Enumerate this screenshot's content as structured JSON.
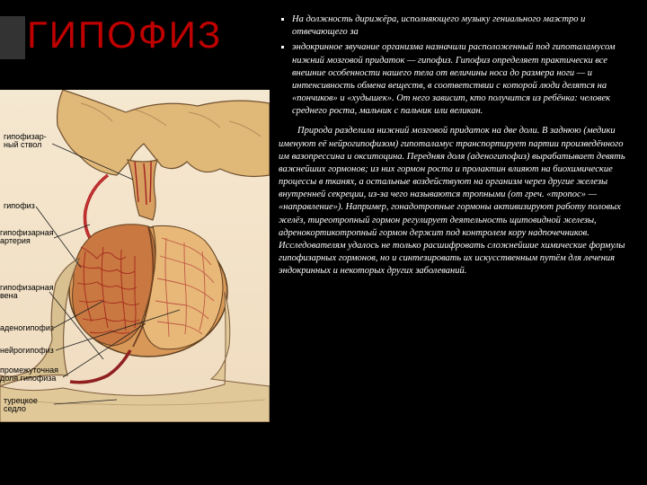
{
  "title": "ГИПОФИЗ",
  "diagram": {
    "labels": {
      "stalk": "гипофизар-\nный ствол",
      "pituitary": "гипофиз",
      "artery": "гипофизарная\nартерия",
      "vein": "гипофизарная\nвена",
      "adeno": "аденогипофиз",
      "neuro": "нейрогипофиз",
      "intermediate": "промежуточная\nдоля гипофиза",
      "saddle": "турецкое\nседло"
    },
    "colors": {
      "background": "#f5e8d0",
      "tissue_light": "#e8c890",
      "tissue_dark": "#c89050",
      "vessel_red": "#b02020",
      "vessel_dark": "#801010",
      "bone": "#d8b880",
      "outline": "#604020",
      "label_text": "#000000",
      "label_line": "#303030"
    }
  },
  "text": {
    "bullet1": "На должность дирижёра, исполняющего музыку гениального маэстро и отвечающего за",
    "bullet2": "эндокринное звучание организма назначили расположенный под гипоталамусом нижний мозговой придаток — гипофиз. Гипофиз определяет практически все внешние особенности нашего тела от величины носа до размера ноги — и интенсивность обмена веществ, в соответствии с которой люди делятся на «пончиков» и «худышек». От него зависит, кто получится из ребёнка: человек среднего роста, мальчик с пальчик или великан.",
    "para1": "Природа разделила нижний мозговой придаток на две доли. В заднюю (медики именуют её нейрогипофизом) гипоталамус транспортирует партии произведённого им вазопрессина и окситоцина. Передняя доля (аденогипофиз) вырабатывает девять важнейших гормонов; из них гормон роста и пролактин влияют на биохимические процессы в тканях, а остальные воздействуют на организм через другие железы внутренней секреции, из-за чего называются тропными (от греч. «тропос» — «направление»). Например, гонадотропные гормоны активизируют работу половых желёз, тиреотропный гормон регулирует деятельность щитовидной железы, адренокортикотропный гормон держит под контролем кору надпочечников. Исследователям удалось не только расшифровать сложнейшие химические формулы гипофизарных гормонов, но и синтезировать их искусственным путём для лечения эндокринных и некоторых других заболеваний."
  },
  "style": {
    "bg": "#000000",
    "title_color": "#c00000",
    "text_color": "#ffffff",
    "title_fontsize": 42,
    "body_fontsize": 10.5
  }
}
